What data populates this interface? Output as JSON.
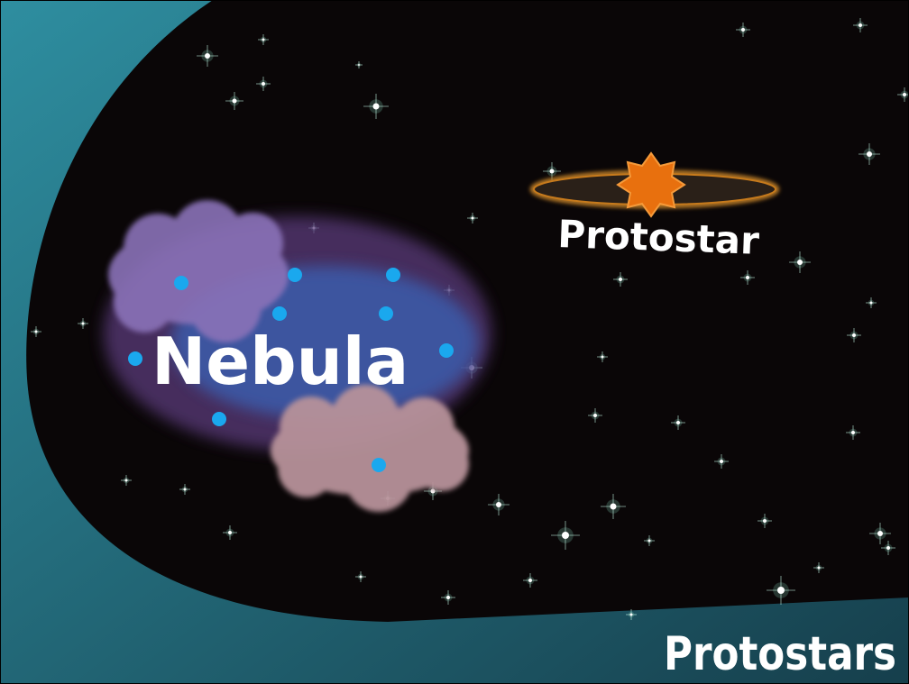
{
  "labels": {
    "nebula": "Nebula",
    "protostar": "Protostar",
    "title": "Protostars"
  }
}
